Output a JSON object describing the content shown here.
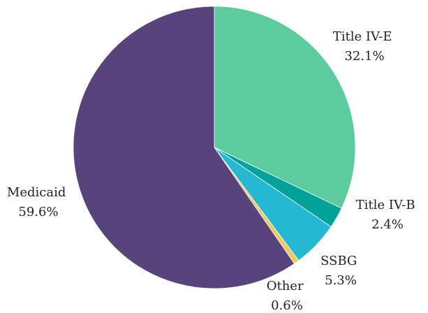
{
  "chart_data": {
    "type": "pie",
    "title": "",
    "start_angle_deg": 0,
    "direction": "clockwise",
    "slices": [
      {
        "label": "Title IV-E",
        "value": 32.1,
        "value_label": "32.1%",
        "color": "#5ccc9f"
      },
      {
        "label": "Title IV-B",
        "value": 2.4,
        "value_label": "2.4%",
        "color": "#00a39a"
      },
      {
        "label": "SSBG",
        "value": 5.3,
        "value_label": "5.3%",
        "color": "#25b8d2"
      },
      {
        "label": "Other",
        "value": 0.6,
        "value_label": "0.6%",
        "color": "#f0c95b"
      },
      {
        "label": "Medicaid",
        "value": 59.6,
        "value_label": "59.6%",
        "color": "#57447c"
      }
    ]
  }
}
